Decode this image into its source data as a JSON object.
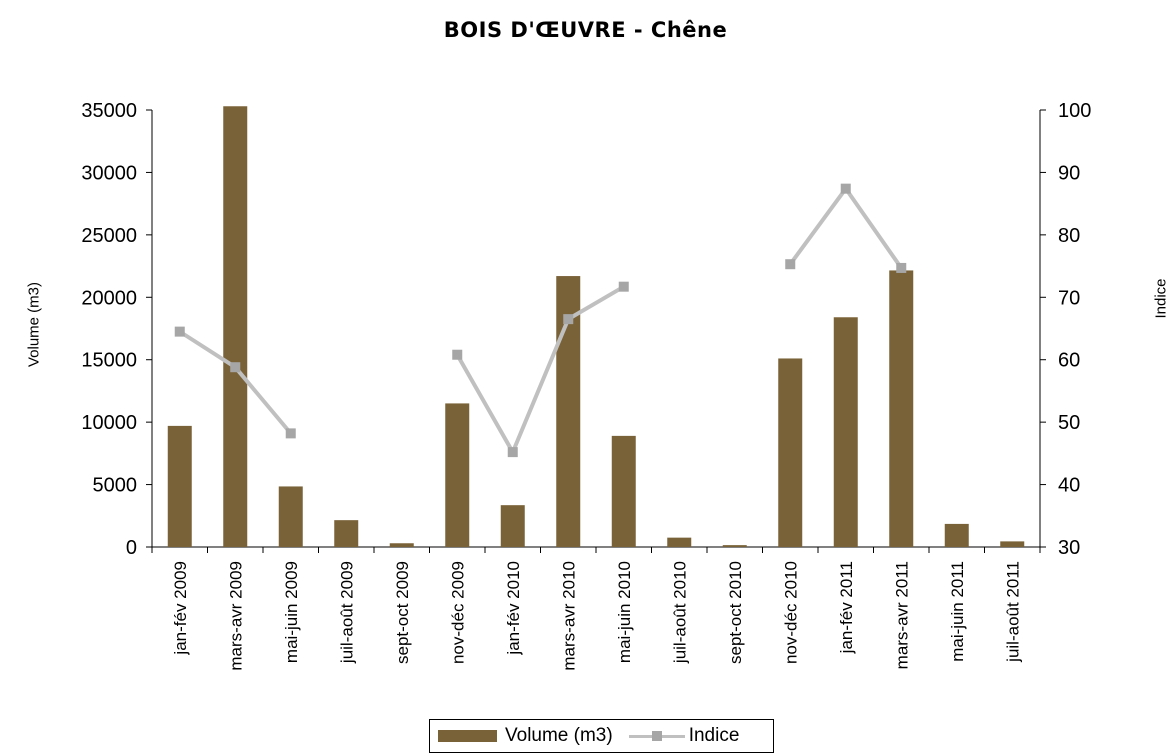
{
  "chart_data": {
    "type": "bar",
    "title": "BOIS D'ŒUVRE - Chêne",
    "ylabel": "Volume (m3)",
    "y2label": "Indice",
    "ylim": [
      0,
      35000
    ],
    "y2lim": [
      30,
      100
    ],
    "yticks": [
      "0",
      "5000",
      "10000",
      "15000",
      "20000",
      "25000",
      "30000",
      "35000"
    ],
    "y2ticks": [
      "30",
      "40",
      "50",
      "60",
      "70",
      "80",
      "90",
      "100"
    ],
    "categories": [
      "jan-fév 2009",
      "mars-avr 2009",
      "mai-juin 2009",
      "juil-août 2009",
      "sept-oct 2009",
      "nov-déc 2009",
      "jan-fév 2010",
      "mars-avr 2010",
      "mai-juin 2010",
      "juil-août 2010",
      "sept-oct 2010",
      "nov-déc 2010",
      "jan-fév 2011",
      "mars-avr 2011",
      "mai-juin 2011",
      "juil-août 2011"
    ],
    "series": [
      {
        "name": "Volume (m3)",
        "type": "bar",
        "axis": "left",
        "color": "#7a6238",
        "values": [
          9700,
          35300,
          4850,
          2150,
          300,
          11500,
          3350,
          21700,
          8900,
          750,
          150,
          15100,
          18400,
          22150,
          1850,
          450
        ]
      },
      {
        "name": "Indice",
        "type": "line",
        "axis": "right",
        "color": "#c0c0c0",
        "marker_color": "#a6a6a6",
        "values": [
          64.5,
          58.8,
          48.2,
          null,
          null,
          60.8,
          45.2,
          66.5,
          71.7,
          null,
          null,
          75.3,
          87.4,
          74.7,
          null,
          null
        ]
      }
    ],
    "legend_position": "bottom",
    "grid": false
  }
}
